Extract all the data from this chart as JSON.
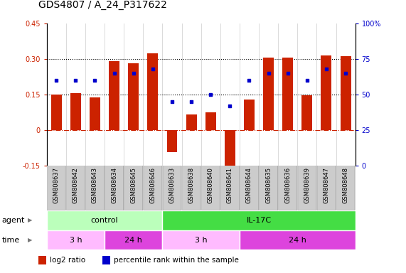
{
  "title": "GDS4807 / A_24_P317622",
  "samples": [
    "GSM808637",
    "GSM808642",
    "GSM808643",
    "GSM808634",
    "GSM808645",
    "GSM808646",
    "GSM808633",
    "GSM808638",
    "GSM808640",
    "GSM808641",
    "GSM808644",
    "GSM808635",
    "GSM808636",
    "GSM808639",
    "GSM808647",
    "GSM808648"
  ],
  "log2_ratio": [
    0.15,
    0.155,
    0.138,
    0.29,
    0.283,
    0.325,
    -0.095,
    0.065,
    0.075,
    -0.155,
    0.13,
    0.305,
    0.305,
    0.148,
    0.315,
    0.312
  ],
  "percentile": [
    60,
    60,
    60,
    65,
    65,
    68,
    45,
    45,
    50,
    42,
    60,
    65,
    65,
    60,
    68,
    65
  ],
  "bar_color": "#cc2200",
  "dot_color": "#0000cc",
  "ylim_left": [
    -0.15,
    0.45
  ],
  "yticks_left": [
    -0.15,
    0.0,
    0.15,
    0.3,
    0.45
  ],
  "ytick_labels_left": [
    "-0.15",
    "0",
    "0.15",
    "0.30",
    "0.45"
  ],
  "ylim_right": [
    0,
    100
  ],
  "yticks_right": [
    0,
    25,
    50,
    75,
    100
  ],
  "ytick_labels_right": [
    "0",
    "25",
    "50",
    "75",
    "100%"
  ],
  "hlines": [
    0.15,
    0.3
  ],
  "zero_line_color": "#cc2200",
  "agent_groups": [
    {
      "label": "control",
      "start": 0,
      "end": 6,
      "color": "#bbffbb"
    },
    {
      "label": "IL-17C",
      "start": 6,
      "end": 16,
      "color": "#44dd44"
    }
  ],
  "time_groups": [
    {
      "label": "3 h",
      "start": 0,
      "end": 3,
      "color": "#ffbbff"
    },
    {
      "label": "24 h",
      "start": 3,
      "end": 6,
      "color": "#dd44dd"
    },
    {
      "label": "3 h",
      "start": 6,
      "end": 10,
      "color": "#ffbbff"
    },
    {
      "label": "24 h",
      "start": 10,
      "end": 16,
      "color": "#dd44dd"
    }
  ],
  "legend_items": [
    {
      "label": "log2 ratio",
      "color": "#cc2200"
    },
    {
      "label": "percentile rank within the sample",
      "color": "#0000cc"
    }
  ],
  "bar_width": 0.55,
  "sample_box_color": "#cccccc",
  "sample_box_edge": "#999999",
  "title_fontsize": 10,
  "tick_fontsize": 7,
  "sample_fontsize": 6,
  "row_label_fontsize": 8,
  "row_fontsize": 8,
  "legend_fontsize": 7.5
}
